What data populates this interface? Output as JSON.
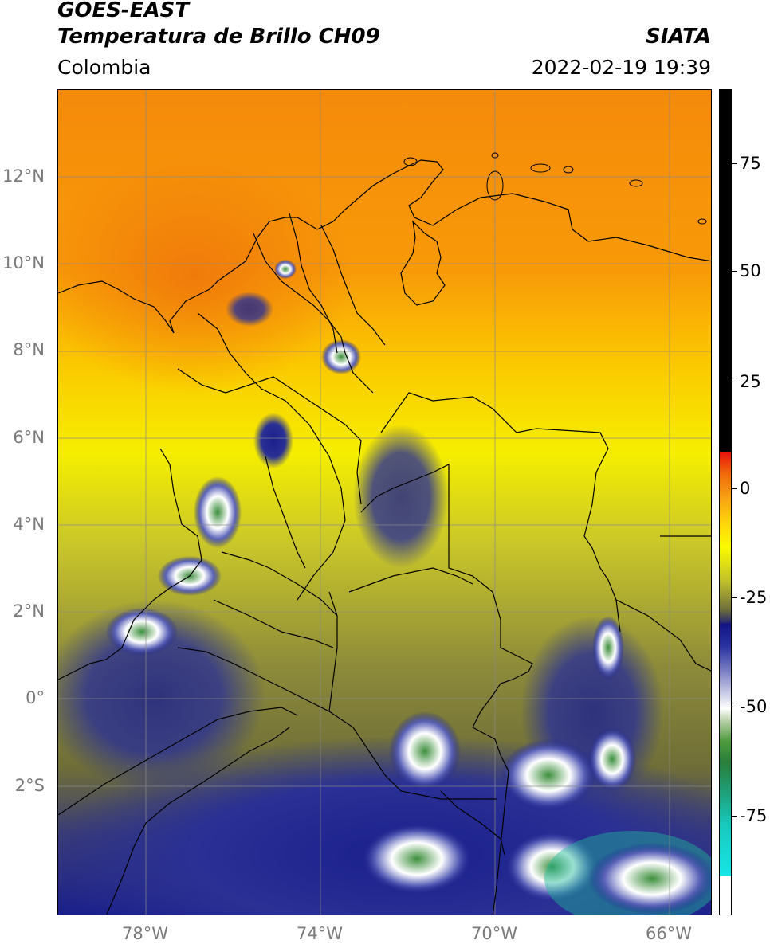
{
  "header": {
    "title_line1": "GOES-EAST",
    "title_line2": "Temperatura de Brillo CH09",
    "source": "SIATA",
    "region": "Colombia",
    "datetime": "2022-02-19 19:39"
  },
  "map": {
    "lat_labels": [
      "12°N",
      "10°N",
      "8°N",
      "6°N",
      "4°N",
      "2°N",
      "0°",
      "2°S"
    ],
    "lon_labels": [
      "78°W",
      "74°W",
      "70°W",
      "66°W"
    ],
    "extent_lon": [
      -80,
      -65
    ],
    "extent_lat": [
      -5,
      14
    ],
    "gridlines": true
  },
  "colorbar": {
    "ticks": [
      "75",
      "50",
      "25",
      "0",
      "-25",
      "-50",
      "-75"
    ],
    "tick_values": [
      75,
      50,
      25,
      0,
      -25,
      -50,
      -75
    ],
    "range": [
      -100,
      100
    ]
  },
  "colors": {
    "warm": "#f58a0a",
    "mid": "#f5f500",
    "cool": "#1a1f8c",
    "cold": "#3c8f3c",
    "coldest": "#1fc7b5"
  }
}
